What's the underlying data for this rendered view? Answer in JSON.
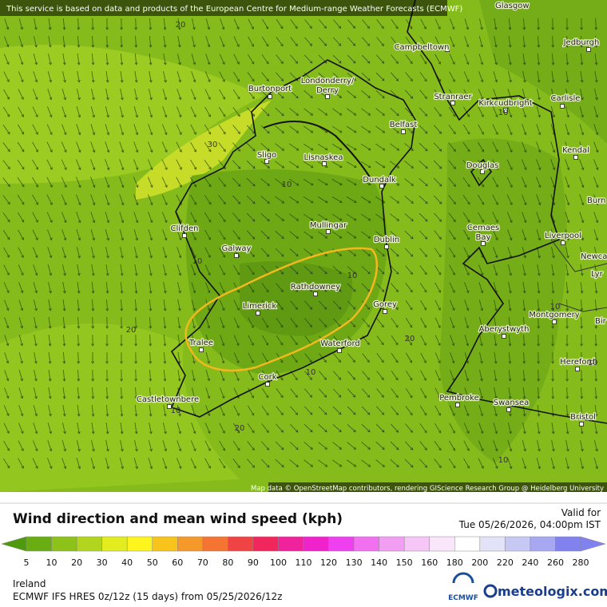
{
  "header": {
    "attribution_top": "This service is based on data and products of the European Centre for Medium-range Weather Forecasts (ECMWF)",
    "attribution_bottom": "Map data © OpenStreetMap contributors, rendering GIScience Research Group @ Heidelberg University"
  },
  "map": {
    "cities": [
      "Glasgow",
      "Jedburgh",
      "Campbeltown",
      "Londonderry/",
      "Derry",
      "Burtonport",
      "Stranraer",
      "Kirkcudbright",
      "Carlisle",
      "Belfast",
      "Kendal",
      "Sligo",
      "Lisnaskea",
      "Douglas",
      "Dundalk",
      "Burn",
      "Mullingar",
      "Clifden",
      "Cemaes",
      "Bay",
      "Liverpool",
      "Dublin",
      "Galway",
      "Newca",
      "Lyr",
      "Rathdowney",
      "Limerick",
      "Gorey",
      "Montgomery",
      "Bir",
      "Aberystwyth",
      "Tralee",
      "Waterford",
      "Hereford",
      "Cork",
      "Pembroke",
      "Castletownbere",
      "Swansea",
      "Bristol"
    ],
    "contour_labels": [
      "20",
      "30",
      "10",
      "10",
      "10",
      "20",
      "20",
      "10",
      "20",
      "10",
      "10",
      "10",
      "10",
      "10"
    ]
  },
  "legend": {
    "title": "Wind direction and mean wind speed (kph)",
    "valid_label": "Valid for",
    "valid_time": "Tue 05/26/2026, 04:00pm IST",
    "scale": [
      {
        "label": "5",
        "color": "#4e9a0c"
      },
      {
        "label": "10",
        "color": "#6aad12"
      },
      {
        "label": "20",
        "color": "#8cc21a"
      },
      {
        "label": "30",
        "color": "#b2d520"
      },
      {
        "label": "40",
        "color": "#e2ec1e"
      },
      {
        "label": "50",
        "color": "#fff51e"
      },
      {
        "label": "60",
        "color": "#f8c41c"
      },
      {
        "label": "70",
        "color": "#f59a2a"
      },
      {
        "label": "80",
        "color": "#f57432"
      },
      {
        "label": "90",
        "color": "#f04444"
      },
      {
        "label": "100",
        "color": "#f0265c"
      },
      {
        "label": "110",
        "color": "#f0229c"
      },
      {
        "label": "120",
        "color": "#f022cc"
      },
      {
        "label": "130",
        "color": "#ee40ee"
      },
      {
        "label": "140",
        "color": "#f070f0"
      },
      {
        "label": "150",
        "color": "#f29ef2"
      },
      {
        "label": "160",
        "color": "#f6c6f6"
      },
      {
        "label": "180",
        "color": "#fae6fa"
      },
      {
        "label": "200",
        "color": "#ffffff"
      },
      {
        "label": "220",
        "color": "#e2e2f8"
      },
      {
        "label": "240",
        "color": "#c8c8f4"
      },
      {
        "label": "260",
        "color": "#a8a8f2"
      },
      {
        "label": "280",
        "color": "#8282ee"
      }
    ]
  },
  "footer": {
    "region": "Ireland",
    "model": "ECMWF IFS HRES 0z/12z (15 days) from 05/25/2026/12z",
    "ecmwf": "ECMWF",
    "brand": "meteologix.com"
  }
}
